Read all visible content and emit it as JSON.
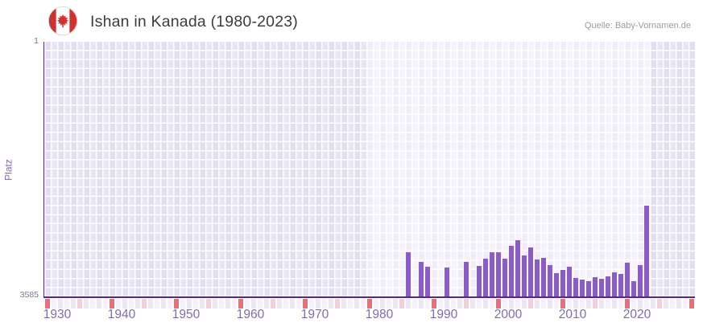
{
  "header": {
    "title": "Ishan in Kanada (1980-2023)",
    "source": "Quelle: Baby-Vornamen.de",
    "flag_icon": "canada-flag"
  },
  "chart_data": {
    "type": "bar",
    "title": "Ishan in Kanada (1980-2023)",
    "ylabel": "Platz",
    "y_axis": {
      "min": 1,
      "max": 3585,
      "inverted": true,
      "top_tick": "1",
      "bottom_tick": "3585"
    },
    "x_axis": {
      "min_year": 1930,
      "max_year": 2030,
      "decade_label_years": [
        1930,
        1940,
        1950,
        1960,
        1970,
        1980,
        1990,
        2000,
        2010,
        2020
      ]
    },
    "highlight_band": {
      "from": 1980,
      "to": 2023
    },
    "legend_position": "none",
    "grid": true,
    "points": [
      {
        "year": 1986,
        "rank": 2959
      },
      {
        "year": 1988,
        "rank": 3094
      },
      {
        "year": 1989,
        "rank": 3154
      },
      {
        "year": 1992,
        "rank": 3173
      },
      {
        "year": 1995,
        "rank": 3091
      },
      {
        "year": 1997,
        "rank": 3151
      },
      {
        "year": 1998,
        "rank": 3049
      },
      {
        "year": 1999,
        "rank": 2953
      },
      {
        "year": 2000,
        "rank": 2959
      },
      {
        "year": 2001,
        "rank": 3046
      },
      {
        "year": 2002,
        "rank": 2865
      },
      {
        "year": 2003,
        "rank": 2786
      },
      {
        "year": 2004,
        "rank": 3004
      },
      {
        "year": 2005,
        "rank": 2883
      },
      {
        "year": 2006,
        "rank": 3057
      },
      {
        "year": 2007,
        "rank": 3034
      },
      {
        "year": 2008,
        "rank": 3136
      },
      {
        "year": 2009,
        "rank": 3252
      },
      {
        "year": 2010,
        "rank": 3204
      },
      {
        "year": 2011,
        "rank": 3158
      },
      {
        "year": 2012,
        "rank": 3309
      },
      {
        "year": 2013,
        "rank": 3337
      },
      {
        "year": 2014,
        "rank": 3365
      },
      {
        "year": 2015,
        "rank": 3301
      },
      {
        "year": 2016,
        "rank": 3323
      },
      {
        "year": 2017,
        "rank": 3292
      },
      {
        "year": 2018,
        "rank": 3241
      },
      {
        "year": 2019,
        "rank": 3258
      },
      {
        "year": 2020,
        "rank": 3100
      },
      {
        "year": 2021,
        "rank": 3365
      },
      {
        "year": 2022,
        "rank": 3139
      },
      {
        "year": 2023,
        "rank": 2304
      }
    ],
    "colors": {
      "bar": "#8c5bc4",
      "axis_line": "#4b2c7f",
      "axis_text": "#8669b2",
      "decade_cell": "#e2707e",
      "half_decade_cell": "#f2d0da",
      "strip_cell_even": "#ebe7f5",
      "strip_cell_odd": "#f4f1fb",
      "flag_red": "#d0312d"
    }
  }
}
